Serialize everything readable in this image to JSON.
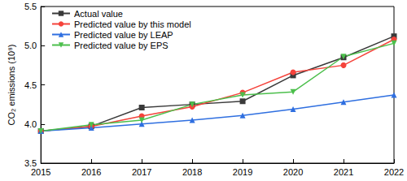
{
  "chart_data": {
    "type": "line",
    "y_label": "CO₂ emissions (10⁸)",
    "categories": [
      "2015",
      "2016",
      "2017",
      "2018",
      "2019",
      "2020",
      "2021",
      "2022"
    ],
    "series": [
      {
        "name": "Actual value",
        "color": "#3a3a3a",
        "marker": "square",
        "values": [
          3.91,
          3.97,
          4.21,
          4.25,
          4.29,
          4.62,
          4.85,
          5.12
        ]
      },
      {
        "name": "Predicted value by this model",
        "color": "#f5433b",
        "marker": "circle",
        "values": [
          3.91,
          3.97,
          4.1,
          4.22,
          4.4,
          4.66,
          4.75,
          5.08
        ]
      },
      {
        "name": "Predicted value by LEAP",
        "color": "#2f6fe0",
        "marker": "triangle",
        "values": [
          3.91,
          3.95,
          4.0,
          4.05,
          4.11,
          4.19,
          4.28,
          4.37
        ]
      },
      {
        "name": "Predicted value by EPS",
        "color": "#4cbf4c",
        "marker": "triangle-down",
        "values": [
          3.91,
          3.99,
          4.05,
          4.25,
          4.37,
          4.41,
          4.86,
          5.03
        ]
      }
    ],
    "ylim": [
      3.5,
      5.5
    ],
    "yticks": [
      3.5,
      {
        "value": 4,
        "label": "4.0"
      },
      4.5,
      {
        "value": 5,
        "label": "5.0"
      },
      5.5
    ],
    "grid": false,
    "legend": "upper left"
  }
}
